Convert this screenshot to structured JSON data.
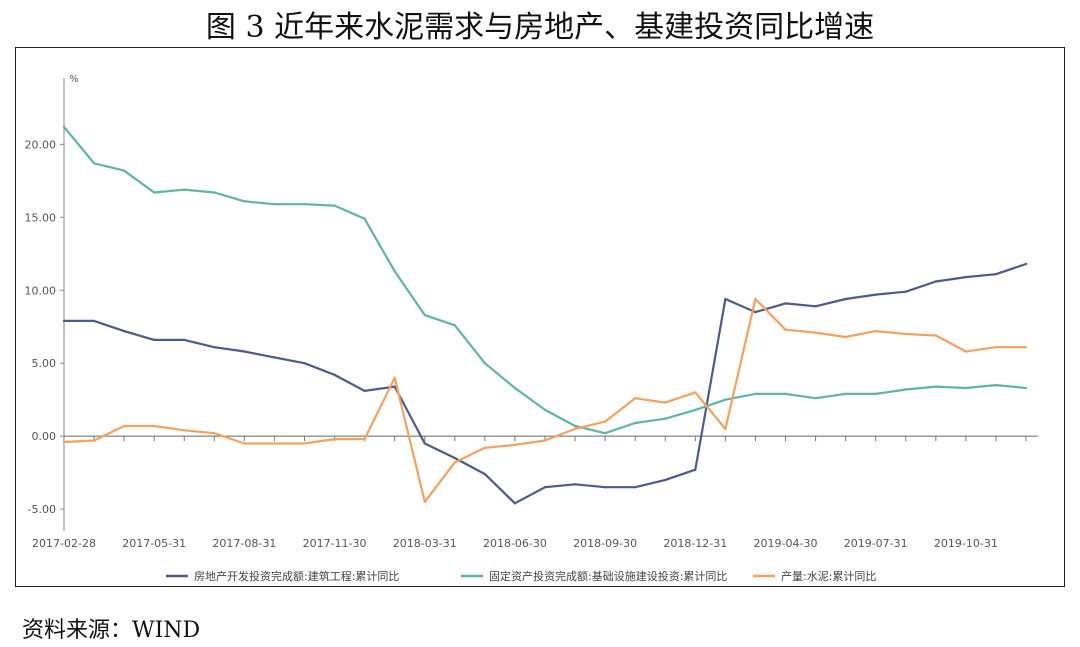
{
  "figure": {
    "title": "图 3  近年来水泥需求与房地产、基建投资同比增速",
    "source": "资料来源：WIND"
  },
  "chart_data": {
    "type": "line",
    "ylabel": "%",
    "ylim": [
      -6.5,
      24
    ],
    "yticks": [
      -5.0,
      0.0,
      5.0,
      10.0,
      15.0,
      20.0
    ],
    "ytick_labels": [
      "-5.00",
      "0.00",
      "5.00",
      "10.00",
      "15.00",
      "20.00"
    ],
    "grid": false,
    "legend_position": "bottom",
    "x": [
      "2017-02-28",
      "2017-03-31",
      "2017-04-30",
      "2017-05-31",
      "2017-06-30",
      "2017-07-31",
      "2017-08-31",
      "2017-09-30",
      "2017-10-31",
      "2017-11-30",
      "2017-12-31",
      "2018-01-31",
      "2018-03-31",
      "2018-04-30",
      "2018-05-31",
      "2018-06-30",
      "2018-07-31",
      "2018-08-31",
      "2018-09-30",
      "2018-10-31",
      "2018-11-30",
      "2018-12-31",
      "2019-01-31",
      "2019-03-31",
      "2019-04-30",
      "2019-05-31",
      "2019-06-30",
      "2019-07-31",
      "2019-08-31",
      "2019-09-30",
      "2019-10-31",
      "2019-11-30",
      "2019-12-31"
    ],
    "x_tick_labels": [
      "2017-02-28",
      "2017-05-31",
      "2017-08-31",
      "2017-11-30",
      "2018-03-31",
      "2018-06-30",
      "2018-09-30",
      "2018-12-31",
      "2019-04-30",
      "2019-07-31",
      "2019-10-31"
    ],
    "series": [
      {
        "name": "房地产开发投资完成额:建筑工程:累计同比",
        "color": "#4e5a8a",
        "values": [
          7.9,
          7.9,
          7.2,
          6.6,
          6.6,
          6.1,
          5.8,
          5.4,
          5.0,
          4.2,
          3.1,
          3.4,
          -0.5,
          -1.5,
          -2.6,
          -4.6,
          -3.5,
          -3.3,
          -3.5,
          -3.5,
          -3.0,
          -2.3,
          9.4,
          8.5,
          9.1,
          8.9,
          9.4,
          9.7,
          9.9,
          10.6,
          10.9,
          11.1,
          11.8
        ]
      },
      {
        "name": "固定资产投资完成额:基础设施建设投资:累计同比",
        "color": "#5fb5a0",
        "values": [
          21.2,
          18.7,
          18.2,
          16.7,
          16.9,
          16.7,
          16.1,
          15.9,
          15.9,
          15.8,
          14.9,
          11.3,
          8.3,
          7.6,
          5.0,
          3.3,
          1.8,
          0.7,
          0.2,
          0.9,
          1.2,
          1.8,
          2.5,
          2.9,
          2.9,
          2.6,
          2.9,
          2.9,
          3.2,
          3.4,
          3.3,
          3.5,
          3.3
        ]
      },
      {
        "name": "产量:水泥:累计同比",
        "color": "#f4a160",
        "values": [
          -0.4,
          -0.3,
          0.7,
          0.7,
          0.4,
          0.2,
          -0.5,
          -0.5,
          -0.5,
          -0.2,
          -0.2,
          4.0,
          -4.5,
          -1.8,
          -0.8,
          -0.6,
          -0.3,
          0.5,
          1.0,
          2.6,
          2.3,
          3.0,
          0.5,
          9.4,
          7.3,
          7.1,
          6.8,
          7.2,
          7.0,
          6.9,
          5.8,
          6.1,
          6.1
        ]
      }
    ]
  }
}
